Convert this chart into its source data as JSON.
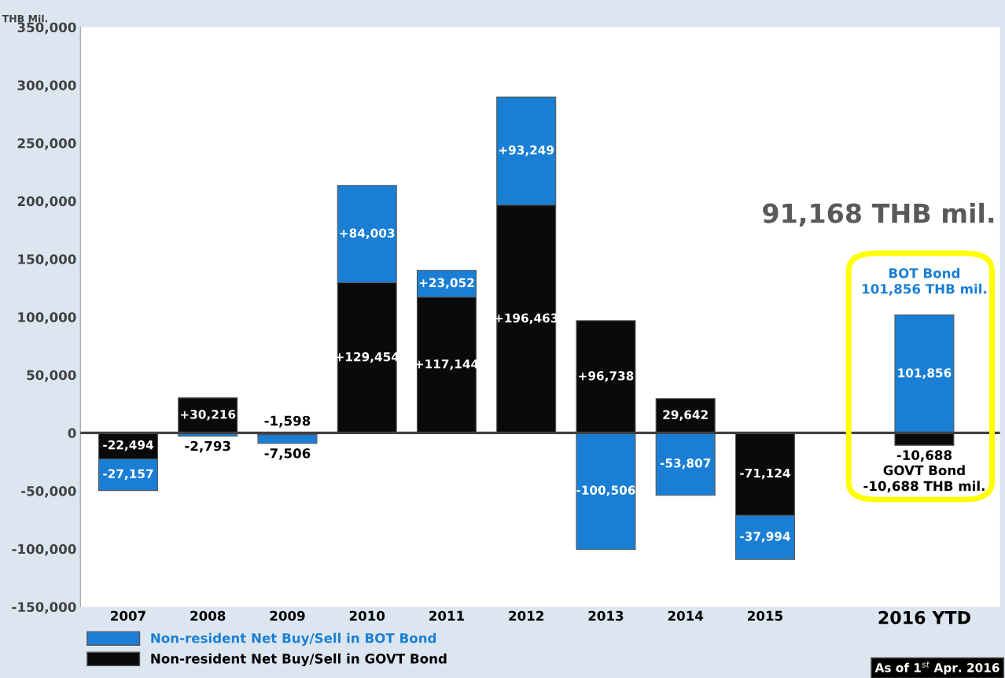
{
  "chart_data": {
    "type": "bar",
    "stacked": true,
    "ylabel": "THB Mil.",
    "categories": [
      "2007",
      "2008",
      "2009",
      "2010",
      "2011",
      "2012",
      "2013",
      "2014",
      "2015",
      null,
      "2016 YTD"
    ],
    "series": [
      {
        "name": "Non-resident Net Buy/Sell in GOVT Bond",
        "color": "#0a0a0a",
        "values": [
          -22494,
          30216,
          -1598,
          129454,
          117144,
          196463,
          96738,
          29642,
          -71124,
          null,
          -10688
        ],
        "value_labels": [
          "-22,494",
          "+30,216",
          "-1,598",
          "+129,454",
          "+117,144",
          "+196,463",
          "+96,738",
          "29,642",
          "-71,124",
          null,
          "-10,688"
        ]
      },
      {
        "name": "Non-resident Net Buy/Sell in BOT Bond",
        "color": "#1a7fd4",
        "values": [
          -27157,
          -2793,
          -7506,
          84003,
          23052,
          93249,
          -100506,
          -53807,
          -37994,
          null,
          101856
        ],
        "value_labels": [
          "-27,157",
          "-2,793",
          "-7,506",
          "+84,003",
          "+23,052",
          "+93,249",
          "-100,506",
          "-53,807",
          "-37,994",
          null,
          "101,856"
        ]
      }
    ],
    "ylim": [
      -150000,
      350000
    ],
    "yticks": [
      {
        "value": -150000,
        "label": "-150,000"
      },
      {
        "value": -100000,
        "label": "-100,000"
      },
      {
        "value": -50000,
        "label": "-50,000"
      },
      0,
      {
        "value": 50000,
        "label": "50,000"
      },
      {
        "value": 100000,
        "label": "100,000"
      },
      {
        "value": 150000,
        "label": "150,000"
      },
      {
        "value": 200000,
        "label": "200,000"
      },
      {
        "value": 250000,
        "label": "250,000"
      },
      {
        "value": 300000,
        "label": "300,000"
      },
      {
        "value": 350000,
        "label": "350,000"
      }
    ],
    "ref_lines": [
      {
        "axis": "y",
        "value": 0,
        "color": "#404040"
      }
    ],
    "grid": false,
    "legend": "bottom left",
    "annotations": [
      "91,168 THB mil.",
      "BOT Bond\n101,856 THB mil.",
      "GOVT Bond\n-10,688 THB mil.",
      "As of 1$^{st}$ Apr. 2016"
    ]
  }
}
